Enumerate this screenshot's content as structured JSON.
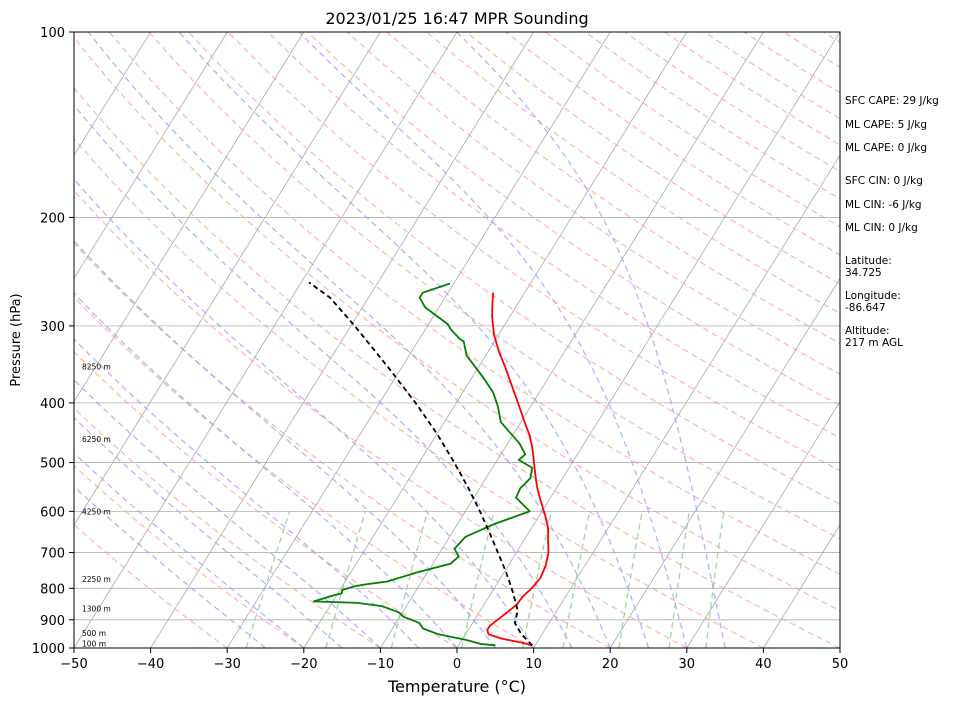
{
  "chart_data": {
    "type": "line",
    "title": "2023/01/25 16:47 MPR Sounding",
    "xlabel": "Temperature (°C)",
    "ylabel": "Pressure (hPa)",
    "xlim": [
      -50,
      50
    ],
    "ylim": [
      1000,
      100
    ],
    "x_ticks": [
      -50,
      -40,
      -30,
      -20,
      -10,
      0,
      10,
      20,
      30,
      40,
      50
    ],
    "y_ticks": [
      100,
      200,
      300,
      400,
      500,
      600,
      700,
      800,
      900,
      1000
    ],
    "y_scale": "log",
    "grid": "horizontal",
    "skew_per_decade_celsius": 50,
    "series": [
      {
        "role": "temperature",
        "color": "#ff0000",
        "points": [
          [
            9.6,
            990
          ],
          [
            8,
            980
          ],
          [
            5,
            965
          ],
          [
            3,
            950
          ],
          [
            2.5,
            935
          ],
          [
            2.5,
            920
          ],
          [
            3.4,
            885
          ],
          [
            4.3,
            850
          ],
          [
            4.4,
            825
          ],
          [
            4.9,
            800
          ],
          [
            5.2,
            770
          ],
          [
            4.9,
            735
          ],
          [
            4.2,
            700
          ],
          [
            3.2,
            670
          ],
          [
            2.2,
            640
          ],
          [
            0.8,
            610
          ],
          [
            -0.3,
            590
          ],
          [
            -1.4,
            570
          ],
          [
            -2.5,
            550
          ],
          [
            -3.5,
            530
          ],
          [
            -4.5,
            510
          ],
          [
            -5.5,
            490
          ],
          [
            -6.6,
            470
          ],
          [
            -7.9,
            450
          ],
          [
            -9.5,
            430
          ],
          [
            -11.1,
            410
          ],
          [
            -12.8,
            390
          ],
          [
            -14.6,
            370
          ],
          [
            -16.5,
            350
          ],
          [
            -18.6,
            330
          ],
          [
            -20.6,
            310
          ],
          [
            -22.3,
            290
          ],
          [
            -23.4,
            275
          ],
          [
            -24.1,
            265
          ]
        ]
      },
      {
        "role": "dewpoint",
        "color": "#008000",
        "points": [
          [
            4.8,
            990
          ],
          [
            2.8,
            985
          ],
          [
            0.5,
            970
          ],
          [
            -3.5,
            950
          ],
          [
            -6,
            930
          ],
          [
            -7,
            910
          ],
          [
            -9.5,
            890
          ],
          [
            -10.5,
            875
          ],
          [
            -13.2,
            855
          ],
          [
            -16.7,
            845
          ],
          [
            -22.5,
            840
          ],
          [
            -20.5,
            822
          ],
          [
            -19.5,
            815
          ],
          [
            -19.7,
            805
          ],
          [
            -18.5,
            795
          ],
          [
            -17.5,
            790
          ],
          [
            -14.5,
            780
          ],
          [
            -11.5,
            755
          ],
          [
            -7.7,
            730
          ],
          [
            -7.2,
            710
          ],
          [
            -8.4,
            690
          ],
          [
            -7.9,
            660
          ],
          [
            -5.3,
            630
          ],
          [
            -1.6,
            600
          ],
          [
            -4.5,
            570
          ],
          [
            -4.7,
            550
          ],
          [
            -4.2,
            530
          ],
          [
            -4.8,
            510
          ],
          [
            -7.2,
            495
          ],
          [
            -6.8,
            485
          ],
          [
            -8.5,
            465
          ],
          [
            -12.6,
            430
          ],
          [
            -14.3,
            405
          ],
          [
            -16,
            385
          ],
          [
            -18,
            368
          ],
          [
            -22.5,
            335
          ],
          [
            -24,
            318
          ],
          [
            -24.7,
            315
          ],
          [
            -26.5,
            305
          ],
          [
            -27.5,
            298
          ],
          [
            -31.8,
            280
          ],
          [
            -33.3,
            270
          ],
          [
            -33.3,
            265
          ],
          [
            -30.5,
            256
          ]
        ]
      },
      {
        "role": "parcel",
        "color": "#000000",
        "points": [
          [
            9.6,
            990
          ],
          [
            7.3,
            950
          ],
          [
            5.5,
            910
          ],
          [
            4.9,
            870
          ],
          [
            4.2,
            850
          ],
          [
            2.3,
            800
          ],
          [
            0.1,
            750
          ],
          [
            -2.4,
            700
          ],
          [
            -5.1,
            650
          ],
          [
            -8.1,
            600
          ],
          [
            -11.5,
            550
          ],
          [
            -15.4,
            500
          ],
          [
            -19.9,
            450
          ],
          [
            -25.3,
            400
          ],
          [
            -31.8,
            350
          ],
          [
            -39.5,
            300
          ],
          [
            -45,
            270
          ],
          [
            -49,
            255
          ]
        ]
      }
    ],
    "stats": [
      "SFC CAPE: 29 J/kg",
      "ML CAPE: 5 J/kg",
      "ML CAPE: 0 J/kg",
      "SFC CIN: 0 J/kg",
      "ML CIN: -6 J/kg",
      "ML CIN: 0 J/kg"
    ],
    "location": [
      [
        "Latitude:",
        "34.725"
      ],
      [
        "Longitude:",
        "-86.647"
      ],
      [
        "Altitude:",
        "217 m AGL"
      ]
    ],
    "height_labels": [
      {
        "text": "100 m",
        "pressure": 984
      },
      {
        "text": "500 m",
        "pressure": 945
      },
      {
        "text": "1300 m",
        "pressure": 862
      },
      {
        "text": "2250 m",
        "pressure": 773
      },
      {
        "text": "4250 m",
        "pressure": 600
      },
      {
        "text": "6250 m",
        "pressure": 458
      },
      {
        "text": "8250 m",
        "pressure": 349
      }
    ],
    "reference_lines": {
      "isotherm_color": "#a9a9a9",
      "dry_adiabat_color": "#ff9999",
      "moist_adiabat_color": "#9999ff",
      "mixing_ratio_color": "#88cc88"
    }
  }
}
